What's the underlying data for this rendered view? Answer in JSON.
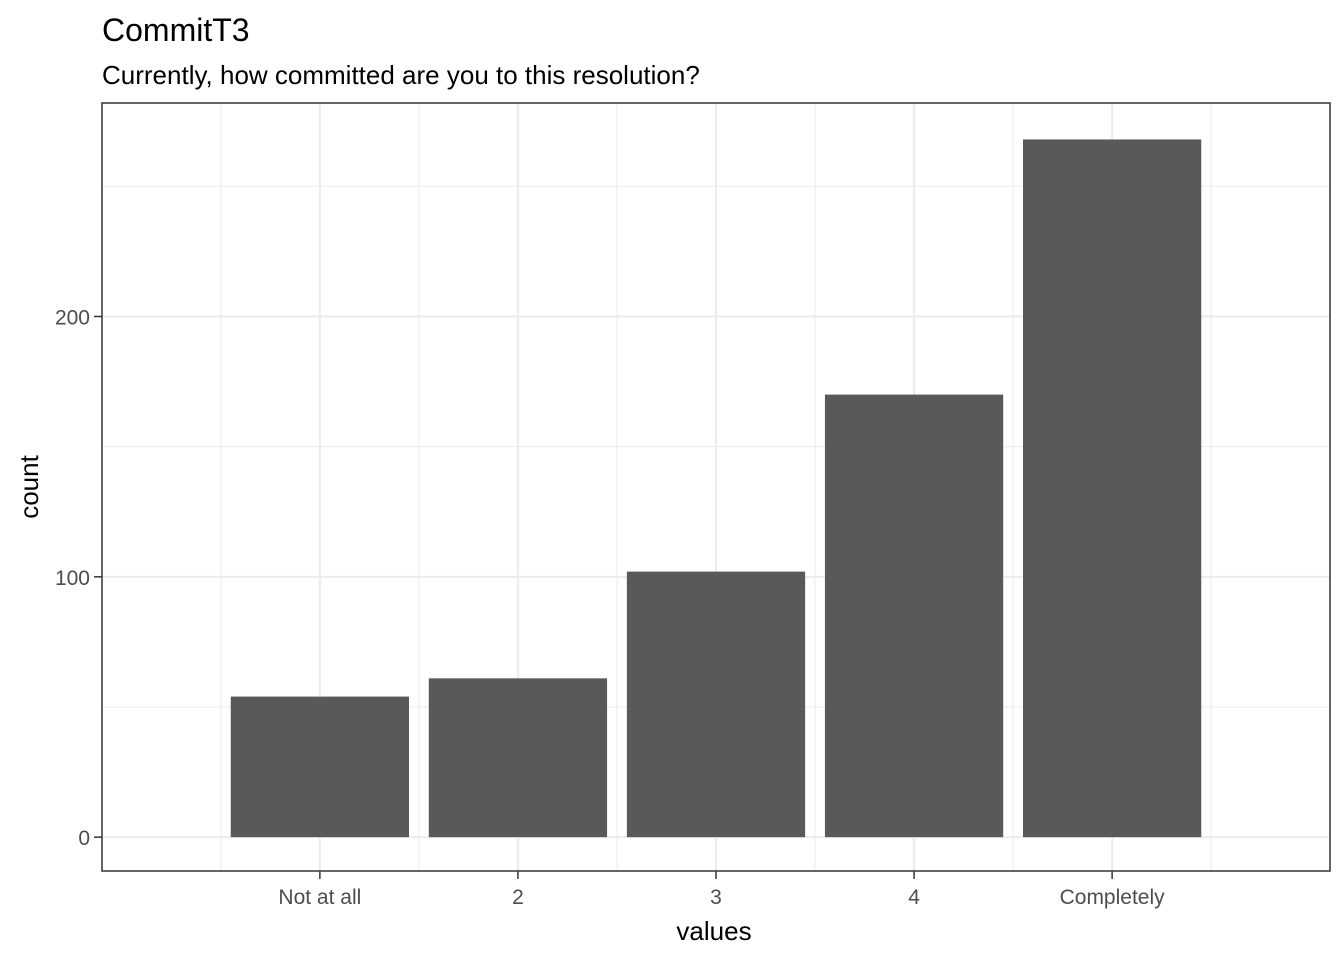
{
  "chart_data": {
    "type": "bar",
    "title": "CommitT3",
    "subtitle": "Currently, how committed are you to this resolution?",
    "xlabel": "values",
    "ylabel": "count",
    "categories": [
      "Not at all",
      "2",
      "3",
      "4",
      "Completely"
    ],
    "values": [
      54,
      61,
      102,
      170,
      268
    ],
    "ylim": [
      -13,
      282
    ],
    "yticks": [
      0,
      100,
      200
    ],
    "ytick_labels": [
      "0",
      "100",
      "200"
    ],
    "grid": true,
    "legend": "none",
    "bar_color": "#595959",
    "grid_color": "#ebebeb",
    "panel_border_color": "#333333"
  }
}
